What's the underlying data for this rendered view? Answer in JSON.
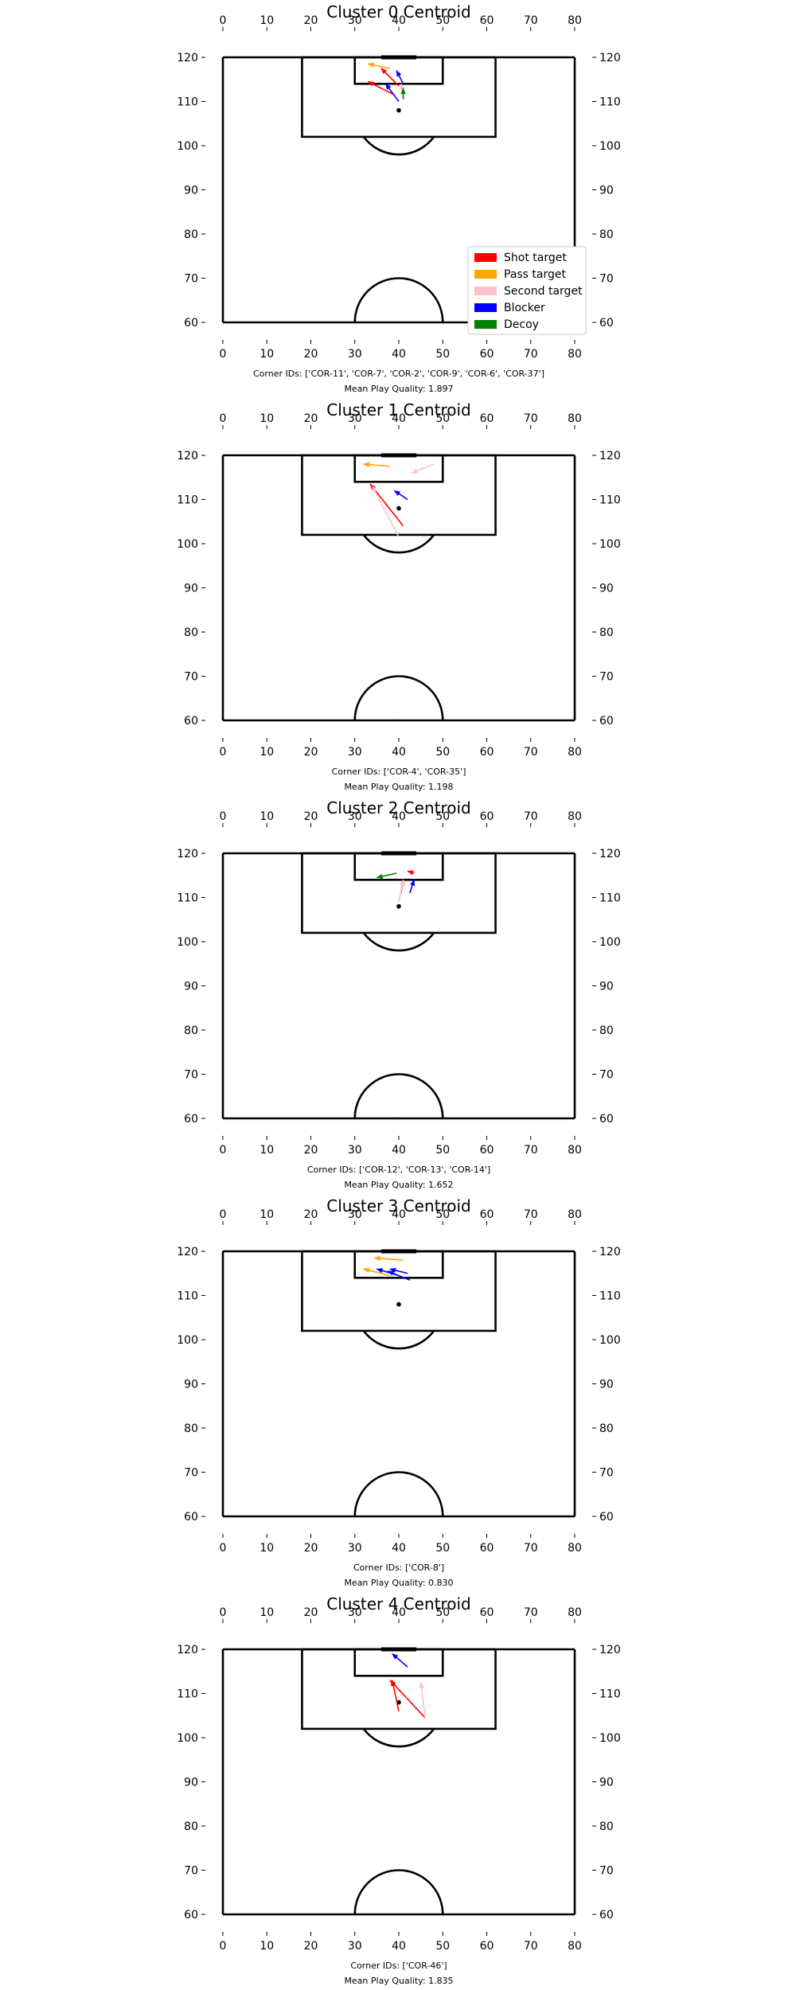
{
  "legend": [
    {
      "label": "Shot target",
      "color": "#ff0000"
    },
    {
      "label": "Pass target",
      "color": "#ffa500"
    },
    {
      "label": "Second target",
      "color": "#ffc0cb"
    },
    {
      "label": "Blocker",
      "color": "#0000ff"
    },
    {
      "label": "Decoy",
      "color": "#008000"
    }
  ],
  "chart_data": [
    {
      "type": "scatter",
      "title": "Cluster 0 Centroid",
      "xlim": [
        0,
        80
      ],
      "ylim": [
        60,
        120
      ],
      "xticks": [
        "0",
        "10",
        "20",
        "30",
        "40",
        "50",
        "60",
        "70",
        "80"
      ],
      "yticks": [
        "60",
        "70",
        "80",
        "90",
        "100",
        "110",
        "120"
      ],
      "ball": [
        40,
        108
      ],
      "arrows": [
        {
          "role": "Pass target",
          "from": [
            38,
            117.5
          ],
          "to": [
            33,
            118.5
          ]
        },
        {
          "role": "Shot target",
          "from": [
            40,
            113.5
          ],
          "to": [
            36,
            117.5
          ]
        },
        {
          "role": "Blocker",
          "from": [
            41,
            114
          ],
          "to": [
            39.5,
            117
          ]
        },
        {
          "role": "Shot target",
          "from": [
            39,
            111.5
          ],
          "to": [
            33,
            114.5
          ]
        },
        {
          "role": "Blocker",
          "from": [
            40,
            110
          ],
          "to": [
            37,
            114
          ]
        },
        {
          "role": "Second target",
          "from": [
            41,
            111
          ],
          "to": [
            40.5,
            114
          ]
        },
        {
          "role": "Decoy",
          "from": [
            41,
            110.5
          ],
          "to": [
            41,
            113
          ]
        }
      ],
      "caption_ids": "Corner IDs: ['COR-11', 'COR-7', 'COR-2', 'COR-9', 'COR-6', 'COR-37']",
      "caption_quality": "Mean Play Quality: 1.897"
    },
    {
      "type": "scatter",
      "title": "Cluster 1 Centroid",
      "xlim": [
        0,
        80
      ],
      "ylim": [
        60,
        120
      ],
      "xticks": [
        "0",
        "10",
        "20",
        "30",
        "40",
        "50",
        "60",
        "70",
        "80"
      ],
      "yticks": [
        "60",
        "70",
        "80",
        "90",
        "100",
        "110",
        "120"
      ],
      "ball": [
        40,
        108
      ],
      "arrows": [
        {
          "role": "Pass target",
          "from": [
            38,
            117.5
          ],
          "to": [
            32,
            118
          ]
        },
        {
          "role": "Second target",
          "from": [
            48,
            118
          ],
          "to": [
            43,
            116
          ]
        },
        {
          "role": "Shot target",
          "from": [
            41,
            104
          ],
          "to": [
            33.5,
            113.5
          ]
        },
        {
          "role": "Second target",
          "from": [
            40,
            101.5
          ],
          "to": [
            34,
            113
          ]
        },
        {
          "role": "Blocker",
          "from": [
            42,
            110
          ],
          "to": [
            39,
            112
          ]
        }
      ],
      "caption_ids": "Corner IDs: ['COR-4', 'COR-35']",
      "caption_quality": "Mean Play Quality: 1.198"
    },
    {
      "type": "scatter",
      "title": "Cluster 2 Centroid",
      "xlim": [
        0,
        80
      ],
      "ylim": [
        60,
        120
      ],
      "xticks": [
        "0",
        "10",
        "20",
        "30",
        "40",
        "50",
        "60",
        "70",
        "80"
      ],
      "yticks": [
        "60",
        "70",
        "80",
        "90",
        "100",
        "110",
        "120"
      ],
      "ball": [
        40,
        108
      ],
      "arrows": [
        {
          "role": "Decoy",
          "from": [
            39.5,
            115.5
          ],
          "to": [
            35,
            114.5
          ]
        },
        {
          "role": "Shot target",
          "from": [
            43.5,
            115.5
          ],
          "to": [
            42,
            116
          ]
        },
        {
          "role": "Shot target",
          "from": [
            40.5,
            111
          ],
          "to": [
            41,
            114
          ]
        },
        {
          "role": "Second target",
          "from": [
            40,
            109
          ],
          "to": [
            41,
            114
          ]
        },
        {
          "role": "Blocker",
          "from": [
            42.5,
            111
          ],
          "to": [
            43.5,
            114
          ]
        }
      ],
      "caption_ids": "Corner IDs: ['COR-12', 'COR-13', 'COR-14']",
      "caption_quality": "Mean Play Quality: 1.652"
    },
    {
      "type": "scatter",
      "title": "Cluster 3 Centroid",
      "xlim": [
        0,
        80
      ],
      "ylim": [
        60,
        120
      ],
      "xticks": [
        "0",
        "10",
        "20",
        "30",
        "40",
        "50",
        "60",
        "70",
        "80"
      ],
      "yticks": [
        "60",
        "70",
        "80",
        "90",
        "100",
        "110",
        "120"
      ],
      "ball": [
        40,
        108
      ],
      "arrows": [
        {
          "role": "Pass target",
          "from": [
            41,
            118
          ],
          "to": [
            34.5,
            118.5
          ]
        },
        {
          "role": "Pass target",
          "from": [
            38,
            114.5
          ],
          "to": [
            32,
            116
          ]
        },
        {
          "role": "Blocker",
          "from": [
            40,
            114.5
          ],
          "to": [
            35,
            116
          ]
        },
        {
          "role": "Blocker",
          "from": [
            42,
            115
          ],
          "to": [
            38,
            116
          ]
        },
        {
          "role": "Blocker",
          "from": [
            42.5,
            113.5
          ],
          "to": [
            37.5,
            115.5
          ]
        }
      ],
      "caption_ids": "Corner IDs: ['COR-8']",
      "caption_quality": "Mean Play Quality: 0.830"
    },
    {
      "type": "scatter",
      "title": "Cluster 4 Centroid",
      "xlim": [
        0,
        80
      ],
      "ylim": [
        60,
        120
      ],
      "xticks": [
        "0",
        "10",
        "20",
        "30",
        "40",
        "50",
        "60",
        "70",
        "80"
      ],
      "yticks": [
        "60",
        "70",
        "80",
        "90",
        "100",
        "110",
        "120"
      ],
      "ball": [
        40,
        108
      ],
      "arrows": [
        {
          "role": "Blocker",
          "from": [
            42,
            116
          ],
          "to": [
            38.5,
            119
          ]
        },
        {
          "role": "Shot target",
          "from": [
            46,
            104.5
          ],
          "to": [
            38,
            113
          ]
        },
        {
          "role": "Shot target",
          "from": [
            40,
            106
          ],
          "to": [
            38.5,
            113
          ]
        },
        {
          "role": "Second target",
          "from": [
            46,
            104.5
          ],
          "to": [
            45,
            112.5
          ]
        }
      ],
      "caption_ids": "Corner IDs: ['COR-46']",
      "caption_quality": "Mean Play Quality: 1.835"
    }
  ]
}
